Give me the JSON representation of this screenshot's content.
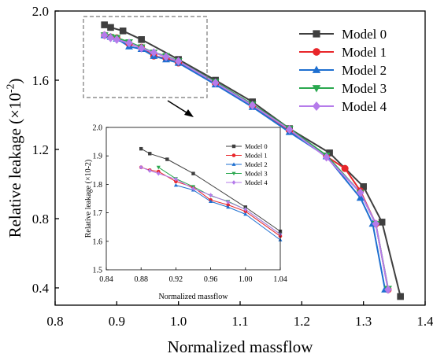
{
  "chart_data": [
    {
      "type": "line",
      "xlabel": "Normalized massflow",
      "ylabel": "Relative leakage (×10",
      "ylabel_sup": "-2",
      "ylabel_close": ")",
      "xlim": [
        0.8,
        1.4
      ],
      "ylim": [
        0.3,
        2.0
      ],
      "xticks": [
        "0.8",
        "0.9",
        "1.0",
        "1.1",
        "1.2",
        "1.3",
        "1.4"
      ],
      "yticks": [
        "0.4",
        "0.8",
        "1.2",
        "1.6",
        "2.0"
      ],
      "legend_position": "top-right",
      "series": [
        {
          "name": "Model 0",
          "color": "#3f3f3f",
          "marker": "square",
          "x": [
            0.88,
            0.89,
            0.91,
            0.94,
            1.0,
            1.06,
            1.12,
            1.18,
            1.245,
            1.3,
            1.33,
            1.36
          ],
          "y": [
            1.92,
            1.905,
            1.885,
            1.835,
            1.72,
            1.6,
            1.475,
            1.32,
            1.18,
            0.985,
            0.78,
            0.35
          ]
        },
        {
          "name": "Model 1",
          "color": "#e8262a",
          "marker": "circle",
          "x": [
            0.88,
            0.89,
            0.9,
            0.92,
            0.94,
            0.96,
            0.98,
            1.0,
            1.06,
            1.12,
            1.18,
            1.24,
            1.27,
            1.295,
            1.32,
            1.34
          ],
          "y": [
            1.86,
            1.85,
            1.845,
            1.81,
            1.79,
            1.74,
            1.725,
            1.7,
            1.58,
            1.45,
            1.31,
            1.16,
            1.09,
            0.96,
            0.77,
            0.39
          ]
        },
        {
          "name": "Model 2",
          "color": "#1e6fd0",
          "marker": "triangle-up",
          "x": [
            0.88,
            0.89,
            0.9,
            0.92,
            0.94,
            0.96,
            0.98,
            1.0,
            1.06,
            1.12,
            1.18,
            1.24,
            1.295,
            1.315,
            1.335
          ],
          "y": [
            1.86,
            1.85,
            1.84,
            1.795,
            1.78,
            1.74,
            1.72,
            1.7,
            1.575,
            1.445,
            1.3,
            1.16,
            0.92,
            0.77,
            0.39
          ]
        },
        {
          "name": "Model 3",
          "color": "#2aa84f",
          "marker": "triangle-down",
          "x": [
            0.88,
            0.89,
            0.9,
            0.92,
            0.94,
            0.96,
            0.98,
            1.0,
            1.06,
            1.12,
            1.18,
            1.24,
            1.295,
            1.32,
            1.34
          ],
          "y": [
            1.86,
            1.85,
            1.845,
            1.82,
            1.79,
            1.76,
            1.74,
            1.71,
            1.59,
            1.46,
            1.32,
            1.165,
            0.95,
            0.77,
            0.395
          ]
        },
        {
          "name": "Model 4",
          "color": "#b57bea",
          "marker": "diamond",
          "x": [
            0.88,
            0.89,
            0.9,
            0.92,
            0.94,
            0.96,
            0.98,
            1.0,
            1.06,
            1.12,
            1.18,
            1.24,
            1.295,
            1.32,
            1.34
          ],
          "y": [
            1.86,
            1.845,
            1.835,
            1.815,
            1.785,
            1.76,
            1.735,
            1.71,
            1.585,
            1.455,
            1.315,
            1.155,
            0.95,
            0.77,
            0.39
          ]
        }
      ]
    },
    {
      "type": "line",
      "xlabel": "Normalized massflow",
      "ylabel": "Relative leakage (×10-2)",
      "xlim": [
        0.84,
        1.04
      ],
      "ylim": [
        1.5,
        2.0
      ],
      "xticks": [
        "0.84",
        "0.88",
        "0.92",
        "0.96",
        "1.00",
        "1.04"
      ],
      "yticks": [
        "1.5",
        "1.6",
        "1.7",
        "1.8",
        "1.9",
        "2.0"
      ],
      "legend_position": "top-right",
      "series": [
        {
          "name": "Model 0",
          "color": "#3f3f3f",
          "marker": "square",
          "x": [
            0.88,
            0.89,
            0.91,
            0.94,
            1.0,
            1.04
          ],
          "y": [
            1.925,
            1.908,
            1.888,
            1.838,
            1.72,
            1.635
          ]
        },
        {
          "name": "Model 1",
          "color": "#e8262a",
          "marker": "circle",
          "x": [
            0.88,
            0.89,
            0.9,
            0.92,
            0.94,
            0.96,
            0.98,
            1.0,
            1.04
          ],
          "y": [
            1.86,
            1.85,
            1.845,
            1.81,
            1.79,
            1.745,
            1.728,
            1.705,
            1.618
          ]
        },
        {
          "name": "Model 2",
          "color": "#1e6fd0",
          "marker": "triangle-up",
          "x": [
            0.92,
            0.94,
            0.96,
            0.98,
            1.0,
            1.04
          ],
          "y": [
            1.797,
            1.78,
            1.74,
            1.72,
            1.695,
            1.605
          ]
        },
        {
          "name": "Model 3",
          "color": "#2aa84f",
          "marker": "triangle-down",
          "x": [
            0.9,
            0.92,
            0.94,
            0.96,
            0.98,
            1.0,
            1.04
          ],
          "y": [
            1.86,
            1.82,
            1.792,
            1.76,
            1.74,
            1.712,
            1.625
          ]
        },
        {
          "name": "Model 4",
          "color": "#b57bea",
          "marker": "diamond",
          "x": [
            0.88,
            0.89,
            0.9,
            0.92,
            0.94,
            0.96,
            0.98,
            1.0,
            1.04
          ],
          "y": [
            1.86,
            1.848,
            1.838,
            1.818,
            1.785,
            1.762,
            1.738,
            1.712,
            1.625
          ]
        }
      ]
    }
  ]
}
